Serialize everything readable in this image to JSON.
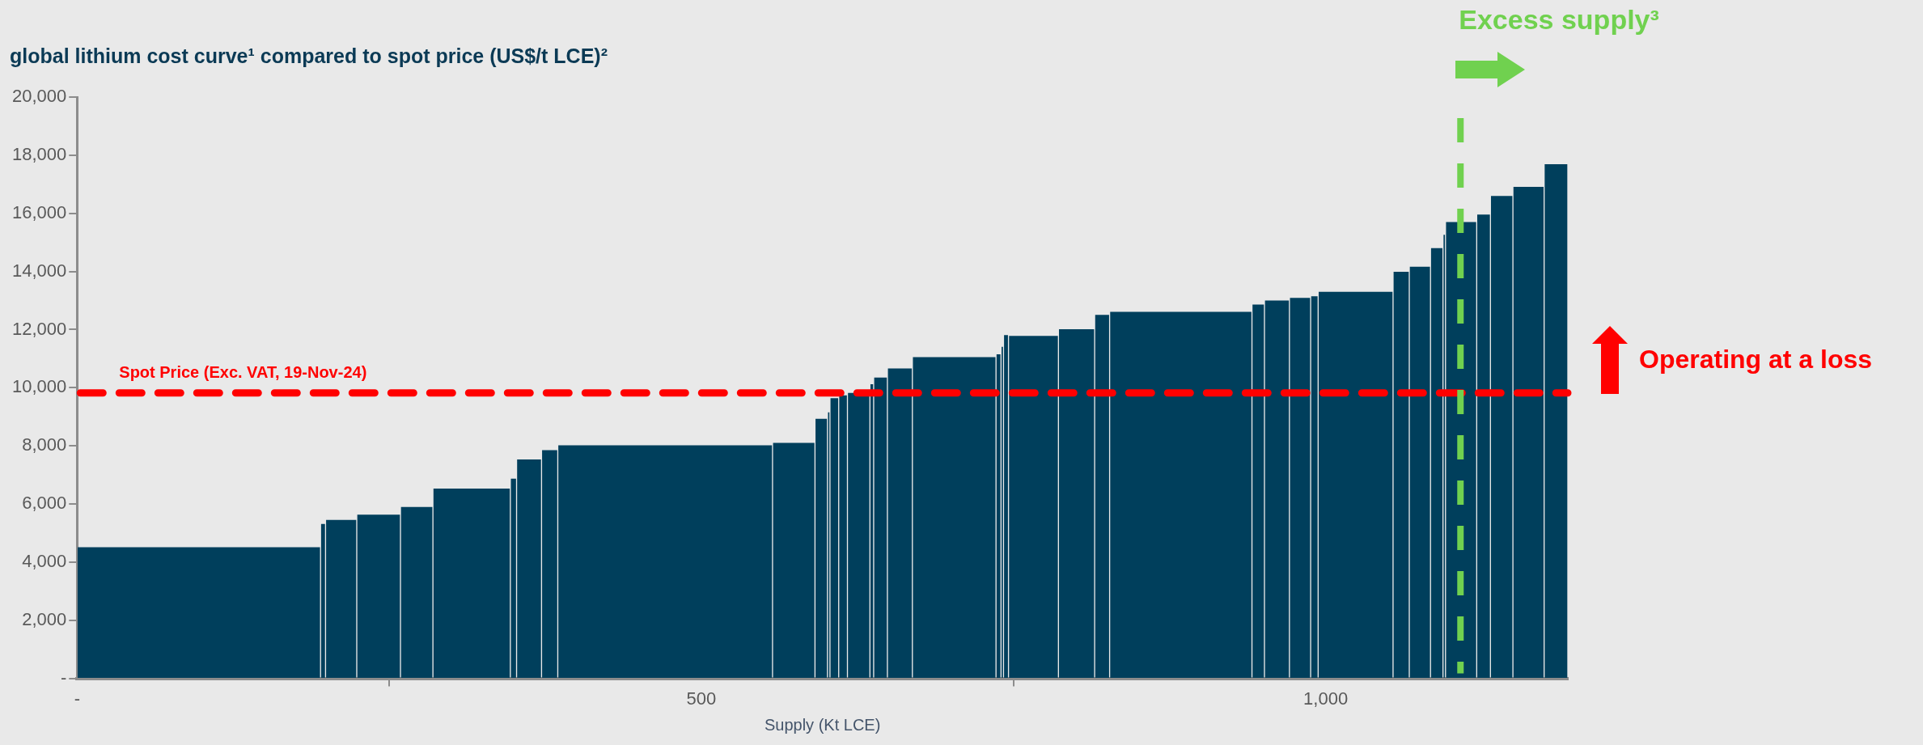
{
  "chart_data": {
    "type": "histogram",
    "title": "global lithium cost curve¹ compared to spot price (US$/t LCE)²",
    "xlabel": "Supply (Kt LCE)",
    "color": "#003f5c",
    "bins": [
      0,
      195,
      199,
      224,
      259,
      285,
      347,
      352,
      372,
      385,
      557,
      591,
      601,
      603,
      610,
      617,
      635,
      638,
      649,
      669,
      736,
      740,
      742,
      746,
      786,
      815,
      827,
      941,
      951,
      971,
      988,
      994,
      1054,
      1067,
      1084,
      1094,
      1096,
      1121,
      1132,
      1150,
      1175,
      1194
    ],
    "values": [
      4500,
      5300,
      5440,
      5620,
      5890,
      6520,
      6860,
      7520,
      7840,
      8010,
      8090,
      8920,
      9140,
      9630,
      9730,
      9810,
      10110,
      10340,
      10650,
      11040,
      11140,
      11400,
      11800,
      11770,
      12000,
      12500,
      12600,
      12850,
      12990,
      13080,
      13140,
      13290,
      13980,
      14150,
      14790,
      15250,
      15690,
      15950,
      16590,
      16900,
      17680
    ],
    "xlim": [
      0,
      1194
    ],
    "xticks": [
      {
        "value": 0,
        "label": "-"
      },
      500,
      {
        "value": 1000,
        "label": "1,000"
      }
    ],
    "ylim": [
      0,
      20000
    ],
    "yticks": [
      {
        "value": 0,
        "label": "-"
      },
      {
        "value": 2000,
        "label": "2,000"
      },
      {
        "value": 4000,
        "label": "4,000"
      },
      {
        "value": 6000,
        "label": "6,000"
      },
      {
        "value": 8000,
        "label": "8,000"
      },
      {
        "value": 10000,
        "label": "10,000"
      },
      {
        "value": 12000,
        "label": "12,000"
      },
      {
        "value": 14000,
        "label": "14,000"
      },
      {
        "value": 16000,
        "label": "16,000"
      },
      {
        "value": 18000,
        "label": "18,000"
      },
      {
        "value": 20000,
        "label": "20,000"
      }
    ],
    "ref_lines": [
      {
        "axis": "y",
        "value": 9820,
        "label": "Spot Price (Exc. VAT, 19-Nov-24)",
        "color": "#ff0000",
        "line_style": "dashed"
      },
      {
        "axis": "x",
        "value": 1108,
        "label": "Excess supply³",
        "color": "#70d14f",
        "line_style": "dashed"
      }
    ],
    "annotations": [
      "Operating at a loss"
    ]
  }
}
